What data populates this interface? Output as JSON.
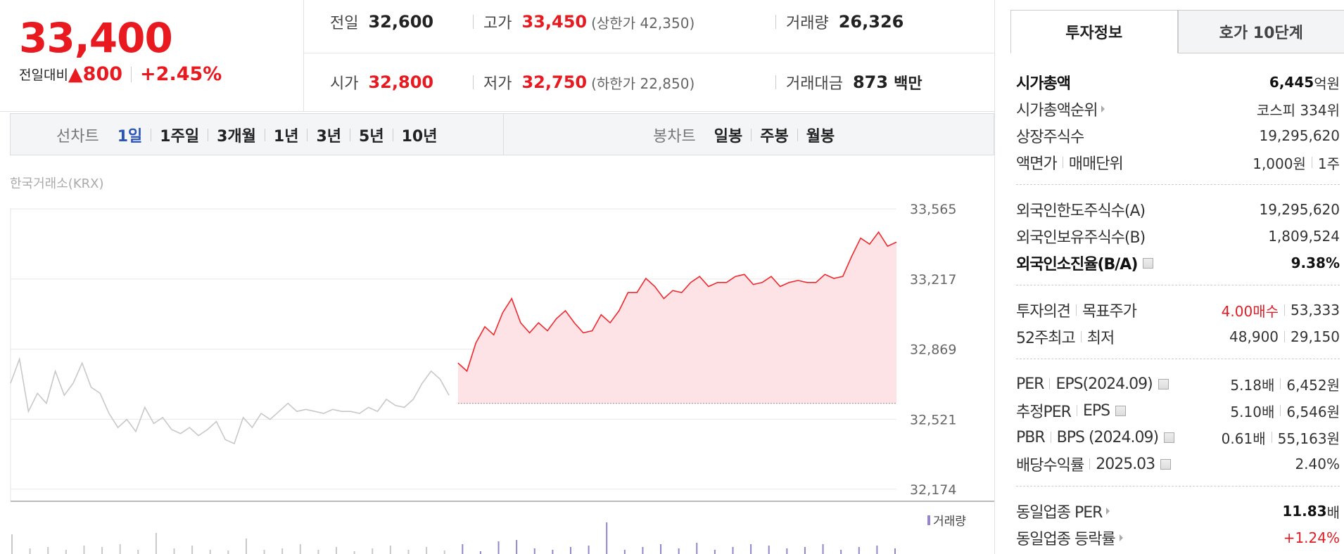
{
  "header": {
    "price": "33,400",
    "change_label": "전일대비",
    "change": "▲800",
    "rate": "+2.45%",
    "info": [
      {
        "label": "전일",
        "value": "32,600"
      },
      {
        "label": "고가",
        "value": "33,450",
        "sub": "(상한가 42,350)"
      },
      {
        "label": "거래량",
        "value": "26,326"
      },
      {
        "label": "시가",
        "value": "32,800"
      },
      {
        "label": "저가",
        "value": "32,750",
        "sub": "(하한가 22,850)"
      },
      {
        "label": "거래대금",
        "value": "873",
        "unit": "백만"
      }
    ]
  },
  "tabs": {
    "line_label": "선차트",
    "periods": [
      "1일",
      "1주일",
      "3개월",
      "1년",
      "3년",
      "5년",
      "10년"
    ],
    "active": 0,
    "candle_label": "봉차트",
    "candles": [
      "일봉",
      "주봉",
      "월봉"
    ]
  },
  "exchange": "한국거래소(KRX)",
  "chart_data": [
    {
      "type": "line",
      "ylim": [
        32114,
        33569
      ],
      "yticks": [
        {
          "value": 33565,
          "label": "33,565"
        },
        {
          "value": 33217,
          "label": "33,217"
        },
        {
          "value": 32869,
          "label": "32,869"
        },
        {
          "value": 32521,
          "label": "32,521"
        },
        {
          "value": 32174,
          "label": "32,174"
        }
      ],
      "grid": true,
      "baseline": 32600,
      "series": [
        {
          "color": "#c8c8c8",
          "values": [
            32700,
            32820,
            32560,
            32650,
            32600,
            32760,
            32640,
            32700,
            32800,
            32680,
            32650,
            32550,
            32480,
            32520,
            32460,
            32580,
            32500,
            32530,
            32470,
            32450,
            32480,
            32440,
            32470,
            32510,
            32420,
            32400,
            32530,
            32480,
            32550,
            32520,
            32560,
            32600,
            32560,
            32570,
            32560,
            32550,
            32570,
            32560,
            32560,
            32550,
            32580,
            32560,
            32620,
            32590,
            32580,
            32620,
            32700,
            32760,
            32720,
            32640,
            null,
            null,
            null,
            null,
            null,
            null,
            null,
            null,
            null,
            null,
            null,
            null,
            null,
            null,
            null,
            null,
            null,
            null,
            null,
            null,
            null,
            null,
            null,
            null,
            null,
            null,
            null,
            null,
            null,
            null,
            null,
            null,
            null,
            null,
            null,
            null,
            null,
            null,
            null,
            null,
            null,
            null,
            null,
            null,
            null,
            null,
            null,
            null,
            null,
            null
          ]
        },
        {
          "color": "#f0282d",
          "fill": "#fde3e5",
          "values": [
            null,
            null,
            null,
            null,
            null,
            null,
            null,
            null,
            null,
            null,
            null,
            null,
            null,
            null,
            null,
            null,
            null,
            null,
            null,
            null,
            null,
            null,
            null,
            null,
            null,
            null,
            null,
            null,
            null,
            null,
            null,
            null,
            null,
            null,
            null,
            null,
            null,
            null,
            null,
            null,
            null,
            null,
            null,
            null,
            null,
            null,
            null,
            null,
            null,
            null,
            32800,
            32760,
            32900,
            32980,
            32940,
            33050,
            33120,
            33000,
            32950,
            33000,
            32960,
            33020,
            33060,
            33000,
            32950,
            32960,
            33040,
            33000,
            33060,
            33150,
            33150,
            33220,
            33180,
            33120,
            33160,
            33150,
            33200,
            33230,
            33180,
            33200,
            33200,
            33230,
            33240,
            33190,
            33200,
            33230,
            33180,
            33200,
            33210,
            33200,
            33200,
            33240,
            33220,
            33230,
            33330,
            33420,
            33390,
            33450,
            33380,
            33400
          ]
        }
      ]
    },
    {
      "type": "bar",
      "ylim": [
        0,
        50
      ],
      "series": [
        {
          "color": "#c8c8c8",
          "values": [
            28,
            8,
            10,
            6,
            12,
            10,
            14,
            6,
            30,
            8,
            12,
            6,
            5,
            22,
            6,
            8,
            14,
            6,
            10,
            4,
            8,
            12,
            6,
            10,
            5,
            null,
            null,
            null,
            null,
            null,
            null,
            null,
            null,
            null,
            null,
            null,
            null,
            null,
            null,
            null,
            null,
            null,
            null,
            null,
            null,
            null,
            null,
            null,
            null,
            null
          ]
        },
        {
          "name": "거래량",
          "color": "#9486c8",
          "values": [
            null,
            null,
            null,
            null,
            null,
            null,
            null,
            null,
            null,
            null,
            null,
            null,
            null,
            null,
            null,
            null,
            null,
            null,
            null,
            null,
            null,
            null,
            null,
            null,
            null,
            14,
            4,
            18,
            20,
            8,
            6,
            10,
            12,
            45,
            6,
            10,
            14,
            8,
            16,
            6,
            10,
            14,
            12,
            8,
            10,
            14,
            6,
            10,
            12,
            8
          ]
        }
      ]
    }
  ],
  "side": {
    "tabs": [
      "투자정보",
      "호가 10단계"
    ],
    "groups": [
      [
        {
          "label": [
            "시가총액"
          ],
          "value": [
            "6,445"
          ],
          "unit": "억원",
          "strong_label": true,
          "strong_value": true
        },
        {
          "label": [
            "시가총액순위"
          ],
          "arrow": true,
          "value": [
            "코스피 334위"
          ]
        },
        {
          "label": [
            "상장주식수"
          ],
          "value": [
            "19,295,620"
          ]
        },
        {
          "label": [
            "액면가",
            "매매단위"
          ],
          "value": [
            "1,000원",
            "1주"
          ]
        }
      ],
      [
        {
          "label": [
            "외국인한도주식수(A)"
          ],
          "value": [
            "19,295,620"
          ]
        },
        {
          "label": [
            "외국인보유주식수(B)"
          ],
          "value": [
            "1,809,524"
          ]
        },
        {
          "label": [
            "외국인소진율(B/A)"
          ],
          "help": true,
          "value": [
            "9.38%"
          ],
          "strong_label": true,
          "strong_value": true
        }
      ],
      [
        {
          "label": [
            "투자의견",
            "목표주가"
          ],
          "value": [
            "4.00매수",
            "53,333"
          ],
          "color": "#e31b23"
        },
        {
          "label": [
            "52주최고",
            "최저"
          ],
          "value": [
            "48,900",
            "29,150"
          ]
        }
      ],
      [
        {
          "label": [
            "PER",
            "EPS(2024.09)"
          ],
          "help": true,
          "value": [
            "5.18배",
            "6,452원"
          ]
        },
        {
          "label": [
            "추정PER",
            "EPS"
          ],
          "help": true,
          "value": [
            "5.10배",
            "6,546원"
          ]
        },
        {
          "label": [
            "PBR",
            "BPS (2024.09)"
          ],
          "help": true,
          "value": [
            "0.61배",
            "55,163원"
          ]
        },
        {
          "label": [
            "배당수익률",
            "2025.03"
          ],
          "help": true,
          "value": [
            "2.40%"
          ]
        }
      ],
      [
        {
          "label": [
            "동일업종 PER"
          ],
          "arrow": true,
          "value": [
            "11.83"
          ],
          "unit": "배",
          "strong_value": true
        },
        {
          "label": [
            "동일업종 등락률"
          ],
          "arrow": true,
          "value": [
            "+1.24%"
          ],
          "color": "#e31b23"
        }
      ]
    ]
  }
}
